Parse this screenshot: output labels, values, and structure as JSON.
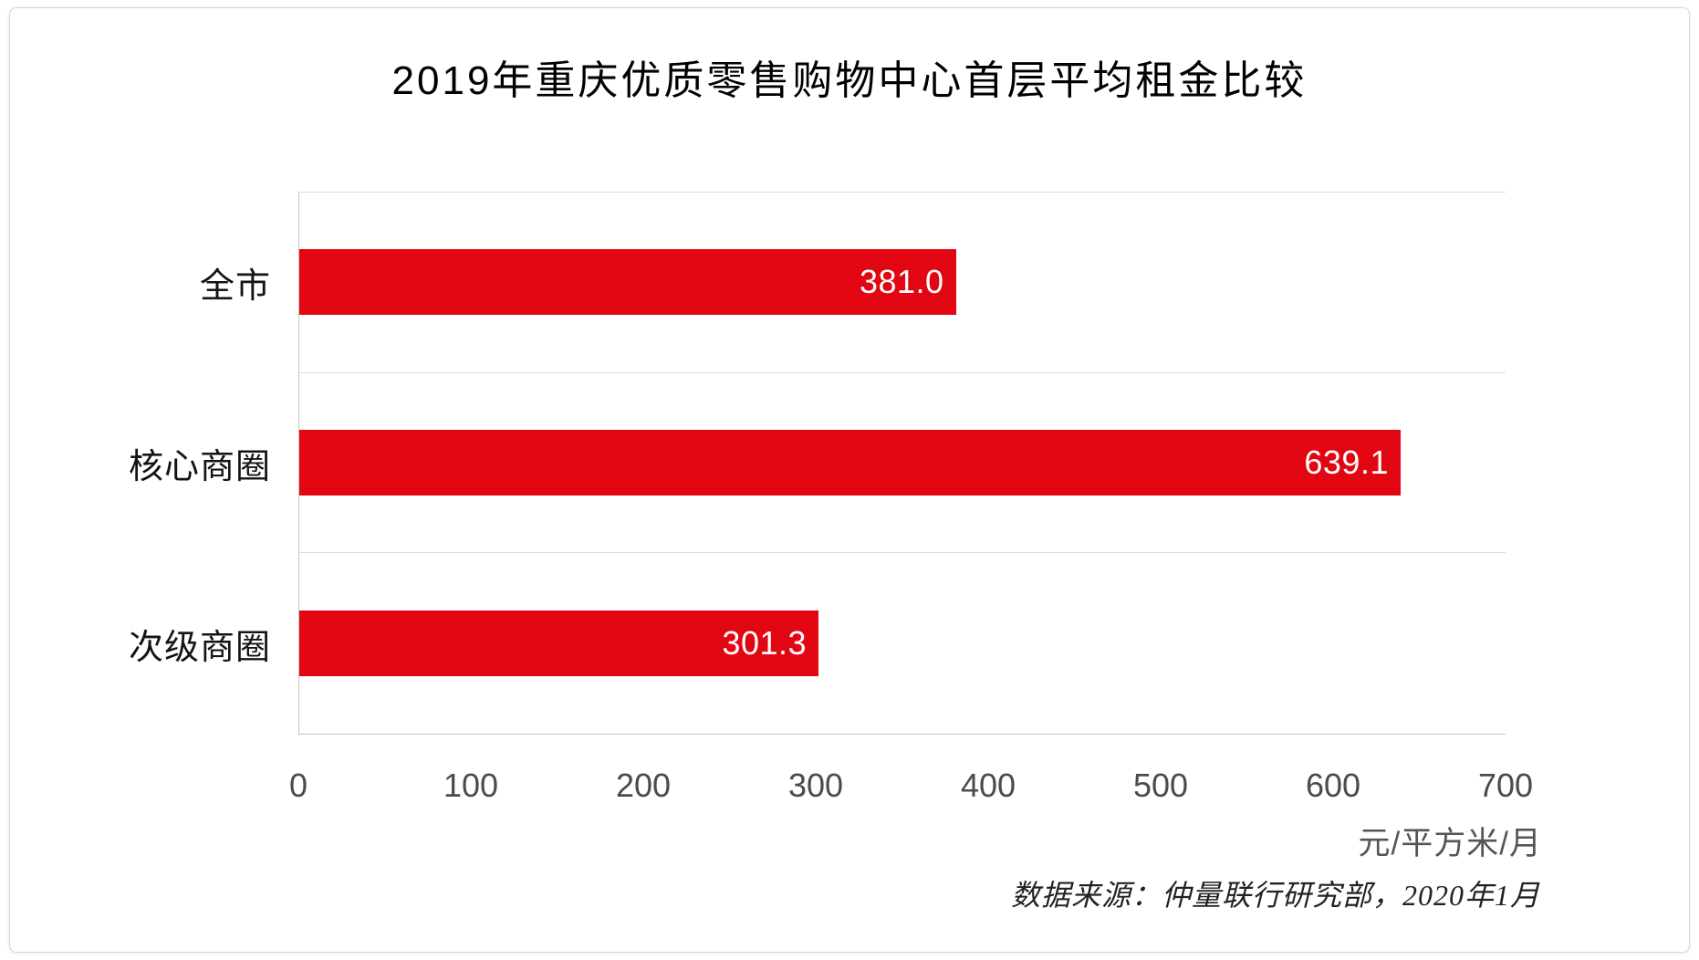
{
  "chart_data": {
    "type": "bar",
    "orientation": "horizontal",
    "title": "2019年重庆优质零售购物中心首层平均租金比较",
    "categories": [
      "全市",
      "核心商圈",
      "次级商圈"
    ],
    "values": [
      381.0,
      639.1,
      301.3
    ],
    "value_labels": [
      "381.0",
      "639.1",
      "301.3"
    ],
    "xlim": [
      0,
      700
    ],
    "xticks": [
      0,
      100,
      200,
      300,
      400,
      500,
      600,
      700
    ],
    "xtick_labels": [
      "0",
      "100",
      "200",
      "300",
      "400",
      "500",
      "600",
      "700"
    ],
    "xlabel": "元/平方米/月",
    "source_note": "数据来源：仲量联行研究部，2020年1月",
    "bar_color": "#e20613",
    "value_label_color": "#ffffff",
    "grid": "horizontal-row-separators",
    "legend": "none"
  }
}
